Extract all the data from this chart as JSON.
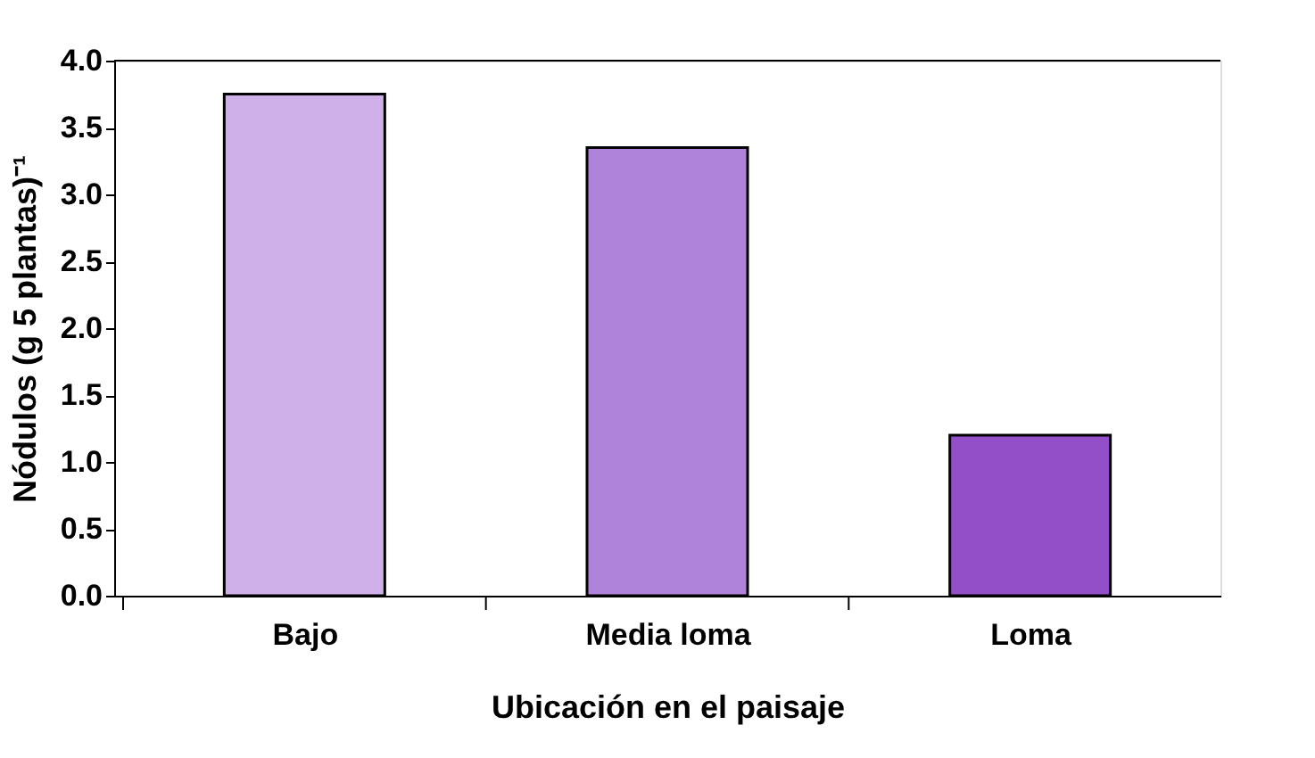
{
  "chart_data": {
    "type": "bar",
    "xlabel": "Ubicación en el paisaje",
    "ylabel": "Nódulos (g 5 plantas)⁻¹",
    "categories": [
      "Bajo",
      "Media loma",
      "Loma"
    ],
    "values": [
      3.75,
      3.35,
      1.2
    ],
    "colors": [
      "#d0b0e8",
      "#b083da",
      "#924fc8"
    ],
    "ylim": [
      0,
      4.0
    ],
    "yticks": [
      {
        "value": 0,
        "label": "0.0"
      },
      0.5,
      {
        "value": 1,
        "label": "1.0"
      },
      1.5,
      {
        "value": 2,
        "label": "2.0"
      },
      2.5,
      {
        "value": 3,
        "label": "3.0"
      },
      3.5,
      {
        "value": 4,
        "label": "4.0"
      }
    ],
    "grid": false
  }
}
